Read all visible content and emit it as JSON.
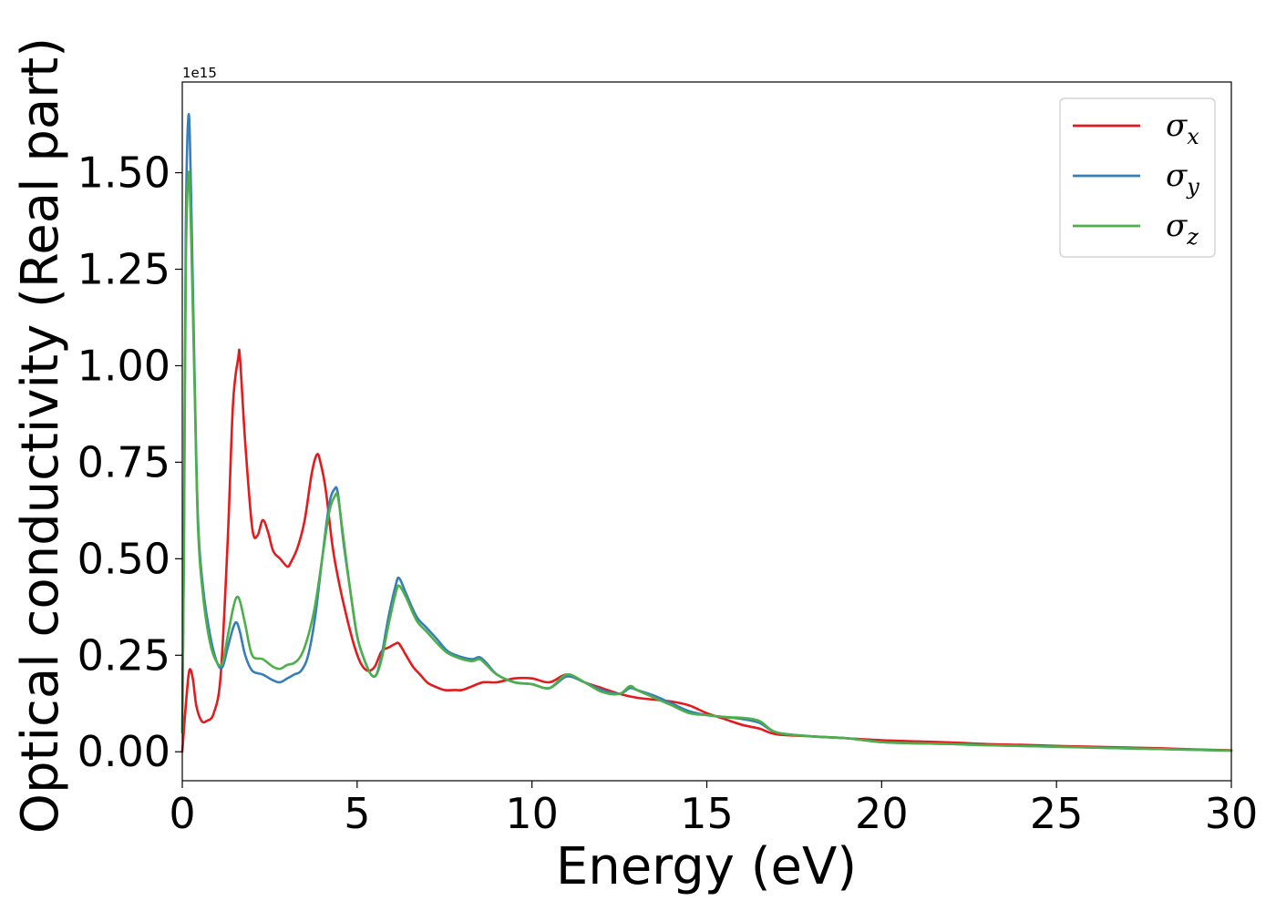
{
  "chart_data": {
    "type": "line",
    "xlabel": "Energy (eV)",
    "ylabel": "Optical conductivity (Real part)",
    "y_offset_label": "1e15",
    "xlim": [
      0,
      30
    ],
    "ylim": [
      -0.075,
      1.735
    ],
    "xticks": [
      0,
      5,
      10,
      15,
      20,
      25,
      30
    ],
    "xtick_labels": [
      "0",
      "5",
      "10",
      "15",
      "20",
      "25",
      "30"
    ],
    "yticks": [
      0.0,
      0.25,
      0.5,
      0.75,
      1.0,
      1.25,
      1.5
    ],
    "ytick_labels": [
      "0.00",
      "0.25",
      "0.50",
      "0.75",
      "1.00",
      "1.25",
      "1.50"
    ],
    "grid": false,
    "legend": {
      "position": "top-right",
      "entries": [
        {
          "base": "σ",
          "sub": "x",
          "color": "#e41a1c"
        },
        {
          "base": "σ",
          "sub": "y",
          "color": "#377eb8"
        },
        {
          "base": "σ",
          "sub": "z",
          "color": "#4daf4a"
        }
      ]
    },
    "series": [
      {
        "name": "σx",
        "color": "#e41a1c",
        "x": [
          0,
          0.1,
          0.2,
          0.3,
          0.4,
          0.55,
          0.7,
          0.9,
          1.1,
          1.3,
          1.45,
          1.6,
          1.65,
          1.8,
          2.0,
          2.15,
          2.3,
          2.45,
          2.6,
          2.8,
          3.0,
          3.1,
          3.3,
          3.5,
          3.7,
          3.85,
          3.95,
          4.1,
          4.3,
          4.5,
          4.7,
          4.9,
          5.1,
          5.3,
          5.5,
          5.7,
          5.9,
          6.1,
          6.2,
          6.4,
          6.6,
          6.8,
          7.0,
          7.2,
          7.5,
          7.8,
          8.0,
          8.3,
          8.6,
          9.0,
          9.5,
          10.0,
          10.5,
          11.0,
          11.5,
          12.0,
          12.5,
          13.0,
          13.5,
          14.0,
          14.5,
          15.0,
          15.5,
          16.0,
          16.5,
          17.0,
          18.0,
          19.0,
          20.0,
          21.0,
          22.0,
          23.0,
          24.0,
          25.0,
          26.0,
          27.0,
          28.0,
          29.0,
          30.0
        ],
        "values": [
          0.0,
          0.12,
          0.21,
          0.19,
          0.12,
          0.08,
          0.08,
          0.1,
          0.2,
          0.55,
          0.9,
          1.02,
          1.02,
          0.8,
          0.58,
          0.56,
          0.6,
          0.57,
          0.52,
          0.5,
          0.48,
          0.49,
          0.53,
          0.6,
          0.72,
          0.77,
          0.75,
          0.68,
          0.53,
          0.43,
          0.35,
          0.28,
          0.23,
          0.21,
          0.22,
          0.26,
          0.27,
          0.28,
          0.28,
          0.25,
          0.22,
          0.2,
          0.18,
          0.17,
          0.16,
          0.16,
          0.16,
          0.17,
          0.18,
          0.18,
          0.19,
          0.19,
          0.18,
          0.2,
          0.18,
          0.165,
          0.15,
          0.14,
          0.135,
          0.13,
          0.12,
          0.1,
          0.085,
          0.07,
          0.06,
          0.045,
          0.04,
          0.035,
          0.03,
          0.027,
          0.024,
          0.02,
          0.018,
          0.015,
          0.013,
          0.011,
          0.009,
          0.006,
          0.004
        ]
      },
      {
        "name": "σy",
        "color": "#377eb8",
        "x": [
          0,
          0.05,
          0.1,
          0.18,
          0.25,
          0.35,
          0.45,
          0.6,
          0.8,
          1.0,
          1.15,
          1.3,
          1.45,
          1.55,
          1.65,
          1.8,
          2.0,
          2.3,
          2.6,
          2.8,
          3.0,
          3.2,
          3.4,
          3.6,
          3.8,
          4.0,
          4.2,
          4.35,
          4.45,
          4.6,
          4.8,
          5.0,
          5.2,
          5.4,
          5.55,
          5.7,
          5.9,
          6.1,
          6.2,
          6.4,
          6.7,
          7.0,
          7.3,
          7.6,
          8.0,
          8.3,
          8.5,
          8.7,
          9.0,
          9.5,
          10.0,
          10.5,
          11.0,
          11.5,
          12.0,
          12.5,
          12.8,
          13.0,
          13.5,
          14.0,
          14.5,
          15.0,
          15.5,
          16.0,
          16.5,
          17.0,
          18.0,
          19.0,
          20.0,
          21.0,
          22.0,
          23.0,
          24.0,
          25.0,
          26.0,
          27.0,
          28.0,
          29.0,
          30.0
        ],
        "values": [
          0.05,
          0.6,
          1.35,
          1.65,
          1.45,
          0.98,
          0.6,
          0.42,
          0.3,
          0.23,
          0.22,
          0.27,
          0.32,
          0.335,
          0.31,
          0.25,
          0.21,
          0.2,
          0.185,
          0.18,
          0.19,
          0.2,
          0.21,
          0.25,
          0.35,
          0.5,
          0.64,
          0.68,
          0.67,
          0.55,
          0.42,
          0.3,
          0.24,
          0.2,
          0.2,
          0.25,
          0.35,
          0.43,
          0.45,
          0.41,
          0.35,
          0.32,
          0.29,
          0.26,
          0.245,
          0.24,
          0.245,
          0.23,
          0.2,
          0.18,
          0.175,
          0.165,
          0.195,
          0.18,
          0.16,
          0.15,
          0.165,
          0.16,
          0.145,
          0.125,
          0.105,
          0.095,
          0.09,
          0.085,
          0.075,
          0.05,
          0.04,
          0.035,
          0.025,
          0.022,
          0.02,
          0.017,
          0.015,
          0.013,
          0.011,
          0.009,
          0.007,
          0.005,
          0.003
        ]
      },
      {
        "name": "σz",
        "color": "#4daf4a",
        "x": [
          0,
          0.05,
          0.1,
          0.18,
          0.25,
          0.35,
          0.45,
          0.6,
          0.8,
          1.0,
          1.15,
          1.3,
          1.45,
          1.55,
          1.65,
          1.8,
          2.0,
          2.3,
          2.6,
          2.8,
          3.0,
          3.2,
          3.4,
          3.6,
          3.8,
          4.0,
          4.2,
          4.35,
          4.45,
          4.6,
          4.8,
          5.0,
          5.2,
          5.4,
          5.55,
          5.7,
          5.9,
          6.1,
          6.2,
          6.4,
          6.7,
          7.0,
          7.3,
          7.6,
          8.0,
          8.3,
          8.5,
          8.7,
          9.0,
          9.5,
          10.0,
          10.5,
          11.0,
          11.5,
          12.0,
          12.5,
          12.8,
          13.0,
          13.5,
          14.0,
          14.5,
          15.0,
          15.5,
          16.0,
          16.5,
          17.0,
          18.0,
          19.0,
          20.0,
          21.0,
          22.0,
          23.0,
          24.0,
          25.0,
          26.0,
          27.0,
          28.0,
          29.0,
          30.0
        ],
        "values": [
          0.05,
          0.55,
          1.25,
          1.5,
          1.35,
          0.95,
          0.58,
          0.4,
          0.28,
          0.23,
          0.23,
          0.3,
          0.37,
          0.4,
          0.39,
          0.33,
          0.25,
          0.24,
          0.22,
          0.215,
          0.225,
          0.23,
          0.25,
          0.3,
          0.38,
          0.5,
          0.62,
          0.66,
          0.66,
          0.56,
          0.42,
          0.3,
          0.24,
          0.2,
          0.2,
          0.24,
          0.33,
          0.41,
          0.43,
          0.4,
          0.34,
          0.31,
          0.28,
          0.255,
          0.24,
          0.235,
          0.24,
          0.225,
          0.2,
          0.18,
          0.175,
          0.165,
          0.2,
          0.18,
          0.155,
          0.15,
          0.17,
          0.16,
          0.14,
          0.12,
          0.1,
          0.095,
          0.09,
          0.088,
          0.08,
          0.05,
          0.04,
          0.035,
          0.025,
          0.022,
          0.02,
          0.017,
          0.015,
          0.013,
          0.011,
          0.009,
          0.007,
          0.005,
          0.003
        ]
      }
    ]
  }
}
